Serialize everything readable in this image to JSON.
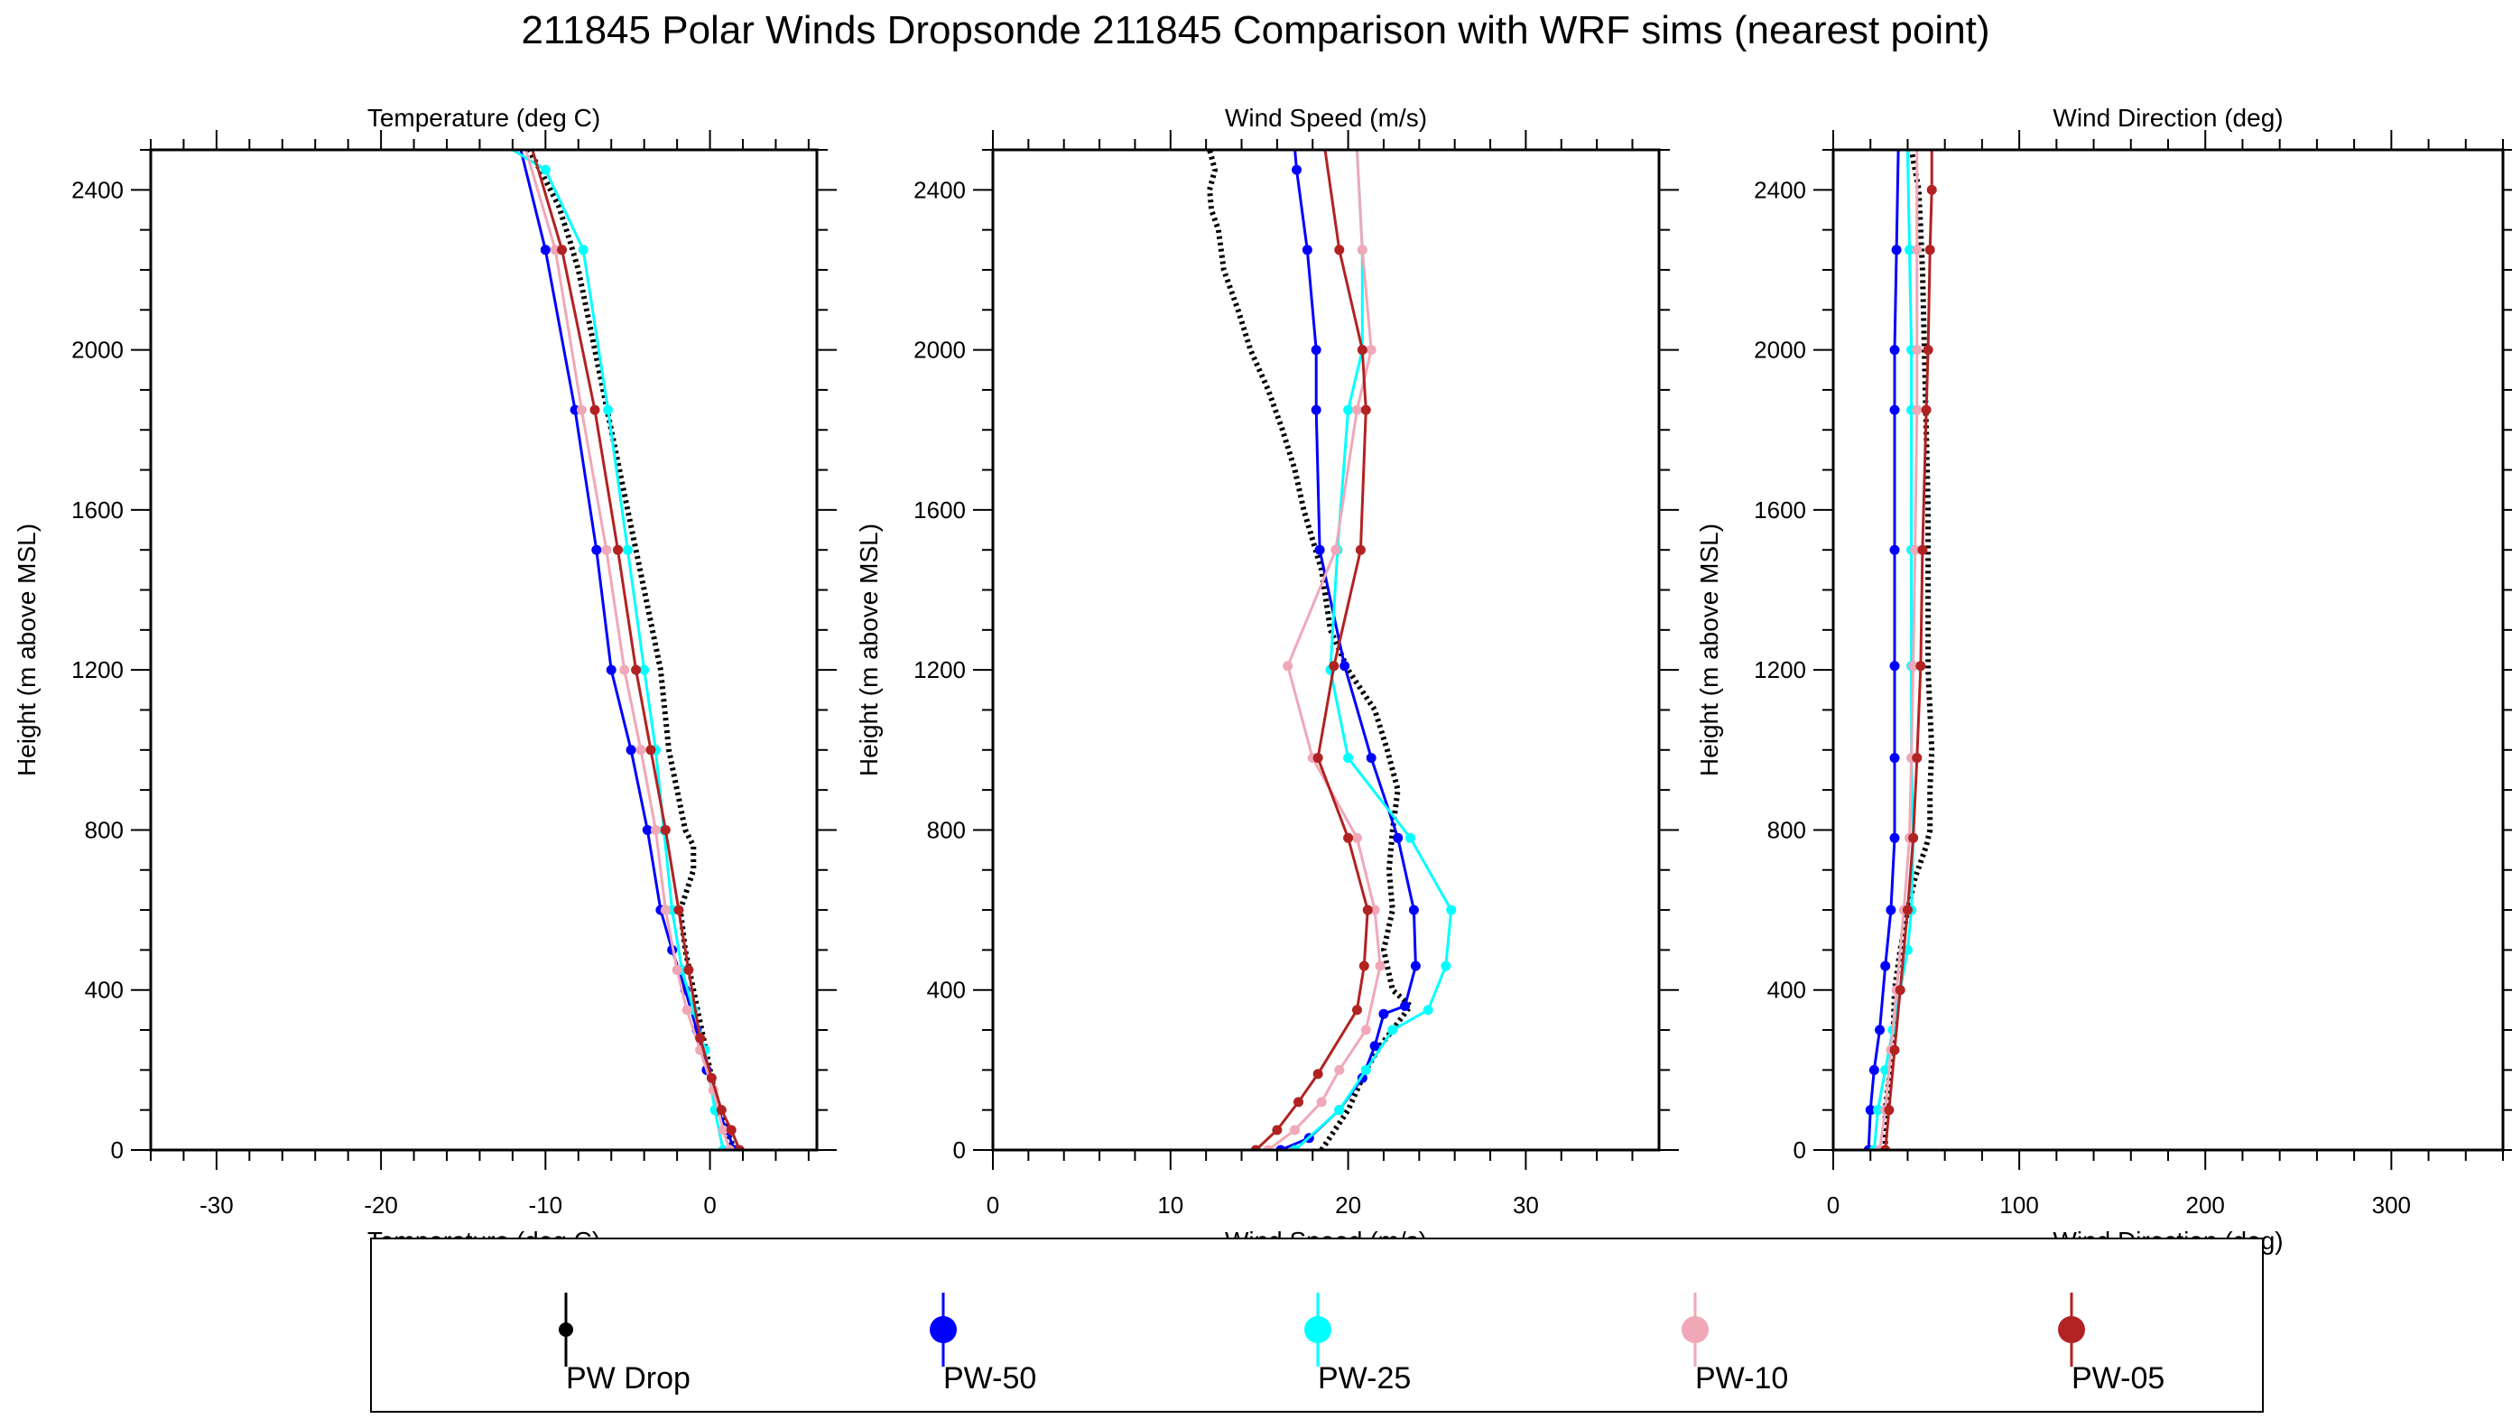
{
  "title": "211845 Polar Winds Dropsonde 211845 Comparison with WRF sims (nearest point)",
  "colors": {
    "PW Drop": "#000000",
    "PW-50": "#0000ff",
    "PW-25": "#00ffff",
    "PW-10": "#f0a8b8",
    "PW-05": "#b22222"
  },
  "legend": [
    "PW Drop",
    "PW-50",
    "PW-25",
    "PW-10",
    "PW-05"
  ],
  "chart_data": [
    {
      "type": "line",
      "title": "Temperature (deg C)",
      "xlabel": "Temperature (deg C)",
      "ylabel": "Height (m above MSL)",
      "xlim": [
        -34,
        6.5
      ],
      "ylim": [
        0,
        2500
      ],
      "xticks": [
        -30,
        -20,
        -10,
        0
      ],
      "yticks": [
        0,
        400,
        800,
        1200,
        1600,
        2000,
        2400
      ],
      "series": [
        {
          "name": "PW Drop",
          "style": "dotted",
          "x": [
            1.5,
            1.0,
            0.5,
            0.0,
            -0.5,
            -1.0,
            -1.5,
            -1.8,
            -1.0,
            -1.0,
            -1.5,
            -2.0,
            -2.5,
            -3.0,
            -4.0,
            -5.0,
            -6.0,
            -7.0,
            -8.0,
            -8.5,
            -9.2,
            -10.2,
            -11.0
          ],
          "y": [
            0,
            50,
            100,
            200,
            300,
            400,
            500,
            600,
            700,
            760,
            800,
            900,
            1000,
            1200,
            1400,
            1600,
            1800,
            2000,
            2200,
            2270,
            2360,
            2440,
            2500
          ]
        },
        {
          "name": "PW-50",
          "x": [
            1.5,
            1.0,
            0.5,
            -0.2,
            -0.8,
            -1.5,
            -2.3,
            -3.0,
            -3.8,
            -4.8,
            -6.0,
            -6.9,
            -8.2,
            -10.0,
            -11.5
          ],
          "y": [
            0,
            50,
            100,
            200,
            300,
            400,
            500,
            600,
            800,
            1000,
            1200,
            1500,
            1850,
            2250,
            2500
          ]
        },
        {
          "name": "PW-25",
          "x": [
            0.8,
            0.3,
            -0.3,
            -1.0,
            -1.7,
            -2.3,
            -2.8,
            -3.3,
            -4.0,
            -5.0,
            -6.2,
            -7.7,
            -10.0,
            -12.0
          ],
          "y": [
            0,
            100,
            250,
            350,
            450,
            600,
            800,
            1000,
            1200,
            1500,
            1850,
            2250,
            2450,
            2500
          ]
        },
        {
          "name": "PW-10",
          "x": [
            1.2,
            0.8,
            0.2,
            -0.6,
            -1.4,
            -2.0,
            -2.7,
            -3.3,
            -4.2,
            -5.2,
            -6.3,
            -7.8,
            -9.4,
            -11.2
          ],
          "y": [
            0,
            50,
            150,
            250,
            350,
            450,
            600,
            800,
            1000,
            1200,
            1500,
            1850,
            2250,
            2500
          ]
        },
        {
          "name": "PW-05",
          "x": [
            1.8,
            1.3,
            0.7,
            0.1,
            -0.6,
            -1.3,
            -1.9,
            -2.7,
            -3.6,
            -4.5,
            -5.6,
            -7.0,
            -9.0,
            -10.8
          ],
          "y": [
            0,
            50,
            100,
            180,
            280,
            450,
            600,
            800,
            1000,
            1200,
            1500,
            1850,
            2250,
            2500
          ]
        }
      ]
    },
    {
      "type": "line",
      "title": "Wind Speed (m/s)",
      "xlabel": "Wind Speed (m/s)",
      "ylabel": "Height (m above MSL)",
      "xlim": [
        0,
        37.5
      ],
      "ylim": [
        0,
        2500
      ],
      "xticks": [
        0,
        10,
        20,
        30
      ],
      "yticks": [
        0,
        400,
        800,
        1200,
        1600,
        2000,
        2400
      ],
      "series": [
        {
          "name": "PW Drop",
          "style": "dotted",
          "x": [
            18.5,
            20.0,
            21.0,
            21.8,
            22.5,
            23.0,
            23.5,
            22.5,
            22.0,
            22.5,
            22.3,
            22.5,
            22.8,
            22.2,
            21.5,
            20.0,
            19.0,
            18.5,
            17.5,
            17.0,
            16.3,
            15.5,
            14.5,
            13.8,
            13.0,
            12.7,
            12.3,
            12.2,
            12.5,
            12.2
          ],
          "y": [
            0,
            100,
            200,
            260,
            300,
            330,
            360,
            400,
            500,
            600,
            700,
            800,
            900,
            1000,
            1100,
            1200,
            1300,
            1450,
            1600,
            1700,
            1800,
            1900,
            2000,
            2100,
            2200,
            2300,
            2350,
            2400,
            2450,
            2500
          ]
        },
        {
          "name": "PW-50",
          "x": [
            16.2,
            17.8,
            19.5,
            20.8,
            21.5,
            22.0,
            23.2,
            23.8,
            23.7,
            22.8,
            21.3,
            19.8,
            18.4,
            18.2,
            18.2,
            17.7,
            17.1,
            17.0
          ],
          "y": [
            0,
            30,
            100,
            180,
            260,
            340,
            360,
            460,
            600,
            780,
            980,
            1210,
            1500,
            1850,
            2000,
            2250,
            2450,
            2500
          ]
        },
        {
          "name": "PW-25",
          "x": [
            17.0,
            19.5,
            21.0,
            22.5,
            24.5,
            25.5,
            25.8,
            23.5,
            20.0,
            19.0,
            19.4,
            20.0,
            20.8,
            20.8,
            20.5
          ],
          "y": [
            0,
            100,
            200,
            300,
            350,
            460,
            600,
            780,
            980,
            1200,
            1500,
            1850,
            2000,
            2250,
            2500
          ]
        },
        {
          "name": "PW-10",
          "x": [
            15.5,
            17.0,
            18.5,
            19.5,
            21.0,
            21.8,
            21.5,
            20.5,
            18.0,
            16.6,
            19.3,
            20.5,
            21.3,
            20.8,
            20.5
          ],
          "y": [
            0,
            50,
            120,
            200,
            300,
            460,
            600,
            780,
            980,
            1210,
            1500,
            1850,
            2000,
            2250,
            2500
          ]
        },
        {
          "name": "PW-05",
          "x": [
            14.8,
            16.0,
            17.2,
            18.3,
            20.5,
            20.9,
            21.1,
            20.0,
            18.3,
            19.2,
            20.7,
            21.0,
            20.8,
            19.5,
            18.7
          ],
          "y": [
            0,
            50,
            120,
            190,
            350,
            460,
            600,
            780,
            980,
            1210,
            1500,
            1850,
            2000,
            2250,
            2500
          ]
        }
      ]
    },
    {
      "type": "line",
      "title": "Wind Direction (deg)",
      "xlabel": "Wind Direction (deg)",
      "ylabel": "Height (m above MSL)",
      "xlim": [
        0,
        360
      ],
      "ylim": [
        0,
        2500
      ],
      "xticks": [
        0,
        100,
        200,
        300
      ],
      "yticks": [
        0,
        400,
        800,
        1200,
        1600,
        2000,
        2400
      ],
      "series": [
        {
          "name": "PW Drop",
          "style": "dotted",
          "x": [
            28,
            28,
            32,
            33,
            36,
            40,
            44,
            50,
            52,
            52,
            53,
            51,
            51,
            49,
            48,
            46,
            42
          ],
          "y": [
            0,
            100,
            250,
            400,
            500,
            600,
            680,
            760,
            800,
            900,
            1000,
            1200,
            1600,
            2000,
            2200,
            2400,
            2500
          ]
        },
        {
          "name": "PW-50",
          "x": [
            19,
            20,
            22,
            25,
            28,
            31,
            33,
            33,
            33,
            33,
            33,
            33,
            34,
            35
          ],
          "y": [
            0,
            100,
            200,
            300,
            460,
            600,
            780,
            980,
            1210,
            1500,
            1850,
            2000,
            2250,
            2500
          ]
        },
        {
          "name": "PW-25",
          "x": [
            22,
            24,
            28,
            32,
            36,
            40,
            42,
            43,
            42,
            42,
            42,
            42,
            42,
            41,
            40
          ],
          "y": [
            0,
            100,
            200,
            300,
            400,
            500,
            600,
            780,
            980,
            1210,
            1500,
            1850,
            2000,
            2250,
            2500
          ]
        },
        {
          "name": "PW-10",
          "x": [
            25,
            28,
            31,
            34,
            38,
            41,
            42,
            43,
            44,
            45,
            45,
            45,
            45
          ],
          "y": [
            0,
            100,
            250,
            400,
            600,
            780,
            980,
            1210,
            1500,
            1850,
            2000,
            2250,
            2500
          ]
        },
        {
          "name": "PW-05",
          "x": [
            28,
            30,
            33,
            36,
            40,
            43,
            45,
            47,
            48,
            50,
            51,
            52,
            53,
            53
          ],
          "y": [
            0,
            100,
            250,
            400,
            600,
            780,
            980,
            1210,
            1500,
            1850,
            2000,
            2250,
            2400,
            2500
          ]
        }
      ]
    }
  ]
}
